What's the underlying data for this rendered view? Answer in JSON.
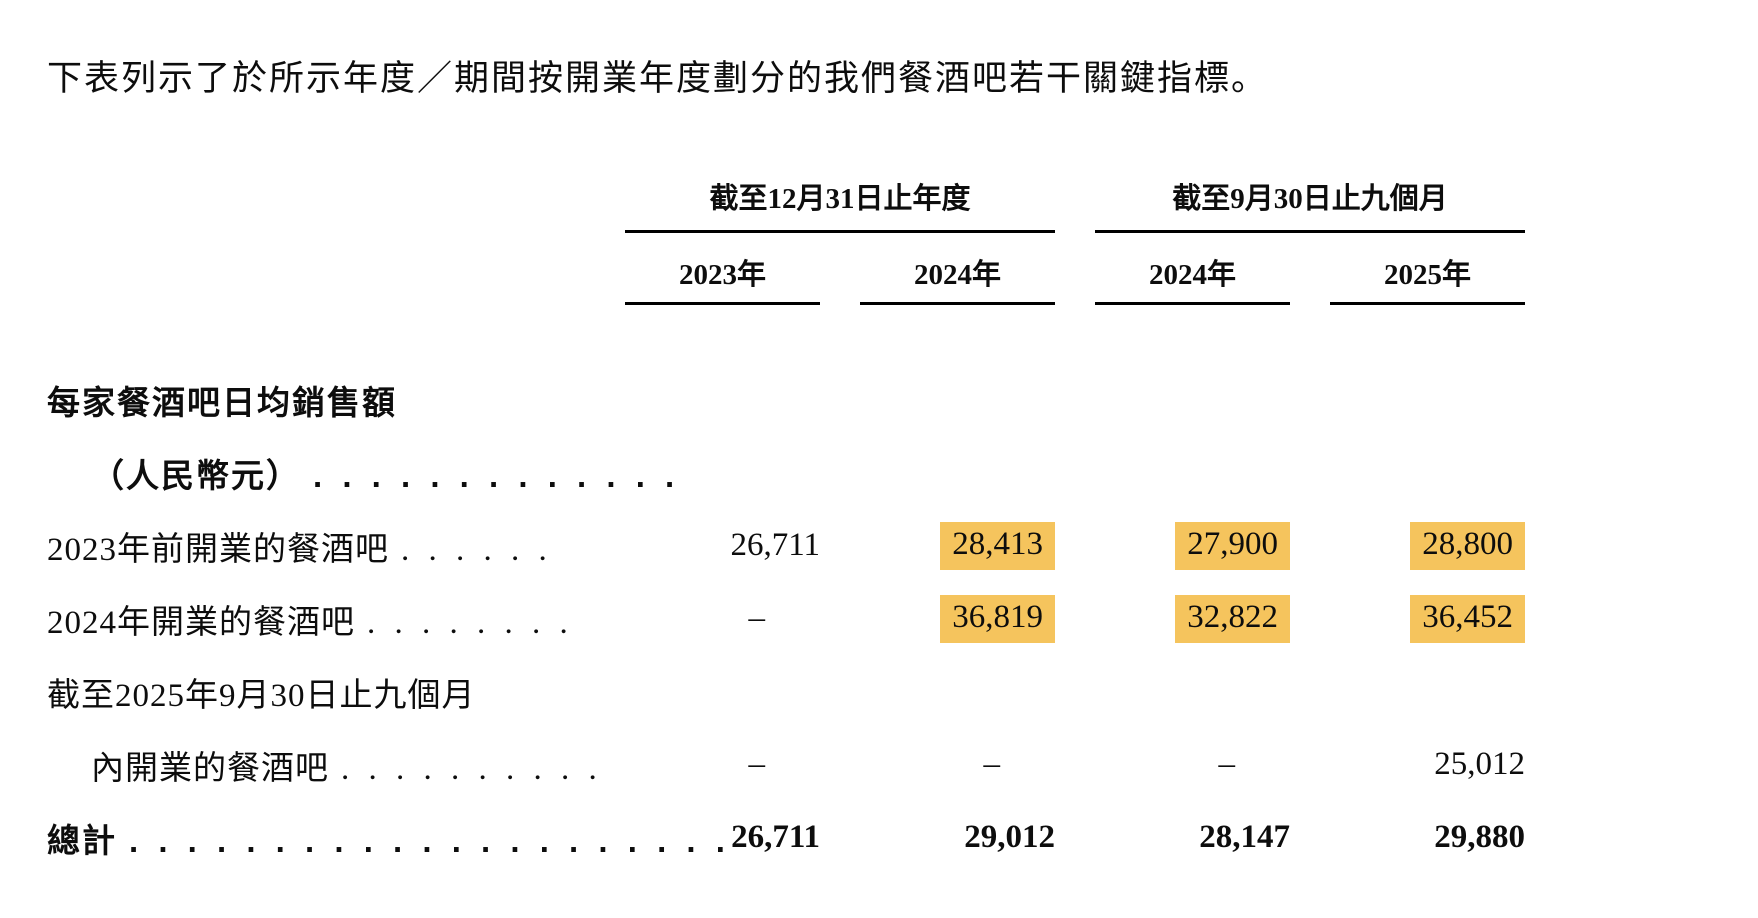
{
  "page": {
    "intro_text": "下表列示了於所示年度／期間按開業年度劃分的我們餐酒吧若干關鍵指標。"
  },
  "table": {
    "highlight_color": "#F5C45D",
    "column_groups": [
      {
        "label": "截至12月31日止年度",
        "columns": [
          "2023年",
          "2024年"
        ]
      },
      {
        "label": "截至9月30日止九個月",
        "columns": [
          "2024年",
          "2025年"
        ]
      }
    ],
    "rows": [
      {
        "label": "每家餐酒吧日均銷售額",
        "bold": true,
        "indent": false,
        "dots": "",
        "values": null
      },
      {
        "label": "（人民幣元）",
        "bold": true,
        "indent": true,
        "dots": ". . . . . . . . . . . . .",
        "values": null
      },
      {
        "label": "2023年前開業的餐酒吧",
        "bold": false,
        "indent": false,
        "dots": ". . . . . .",
        "values": [
          {
            "text": "26,711",
            "highlight": false
          },
          {
            "text": "28,413",
            "highlight": true
          },
          {
            "text": "27,900",
            "highlight": true
          },
          {
            "text": "28,800",
            "highlight": true
          }
        ]
      },
      {
        "label": "2024年開業的餐酒吧",
        "bold": false,
        "indent": false,
        "dots": ". . . . . . . .",
        "values": [
          {
            "text": "–",
            "highlight": false,
            "dash": true
          },
          {
            "text": "36,819",
            "highlight": true
          },
          {
            "text": "32,822",
            "highlight": true
          },
          {
            "text": "36,452",
            "highlight": true
          }
        ]
      },
      {
        "label": "截至2025年9月30日止九個月",
        "bold": false,
        "indent": false,
        "dots": "",
        "values": null
      },
      {
        "label": "內開業的餐酒吧",
        "bold": false,
        "indent": true,
        "dots": ". . . . . . . . . .",
        "values": [
          {
            "text": "–",
            "highlight": false,
            "dash": true
          },
          {
            "text": "–",
            "highlight": false,
            "dash": true
          },
          {
            "text": "–",
            "highlight": false,
            "dash": true
          },
          {
            "text": "25,012",
            "highlight": false
          }
        ]
      },
      {
        "label": "總計",
        "bold": true,
        "indent": false,
        "dots": ". . . . . . . . . . . . . . . . . . . . .",
        "bold_values": true,
        "values": [
          {
            "text": "26,711",
            "highlight": false
          },
          {
            "text": "29,012",
            "highlight": false
          },
          {
            "text": "28,147",
            "highlight": false
          },
          {
            "text": "29,880",
            "highlight": false
          }
        ]
      }
    ]
  }
}
